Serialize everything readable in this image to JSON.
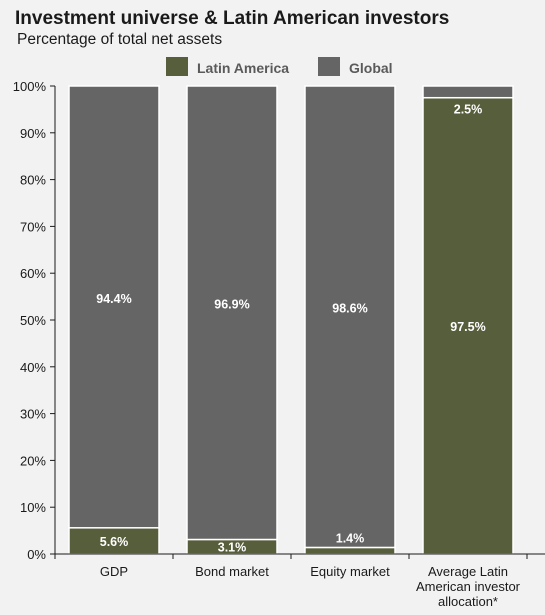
{
  "chart_data": {
    "type": "bar",
    "stacked": true,
    "title": "Investment universe & Latin American investors",
    "subtitle": "Percentage of total net assets",
    "categories": [
      "GDP",
      "Bond market",
      "Equity market",
      "Average Latin American investor allocation*"
    ],
    "category_lines": [
      [
        "GDP"
      ],
      [
        "Bond market"
      ],
      [
        "Equity market"
      ],
      [
        "Average Latin",
        "American investor",
        "allocation*"
      ]
    ],
    "series": [
      {
        "name": "Latin America",
        "color": "#575e3b",
        "values": [
          5.6,
          3.1,
          1.4,
          97.5
        ],
        "labels": [
          "5.6%",
          "3.1%",
          "1.4%",
          "97.5%"
        ]
      },
      {
        "name": "Global",
        "color": "#656565",
        "values": [
          94.4,
          96.9,
          98.6,
          2.5
        ],
        "labels": [
          "94.4%",
          "96.9%",
          "98.6%",
          "2.5%"
        ]
      }
    ],
    "ylim": [
      0,
      100
    ],
    "yticks": [
      "0%",
      "10%",
      "20%",
      "30%",
      "40%",
      "50%",
      "60%",
      "70%",
      "80%",
      "90%",
      "100%"
    ],
    "legend_position": "top-center",
    "grid": false
  }
}
